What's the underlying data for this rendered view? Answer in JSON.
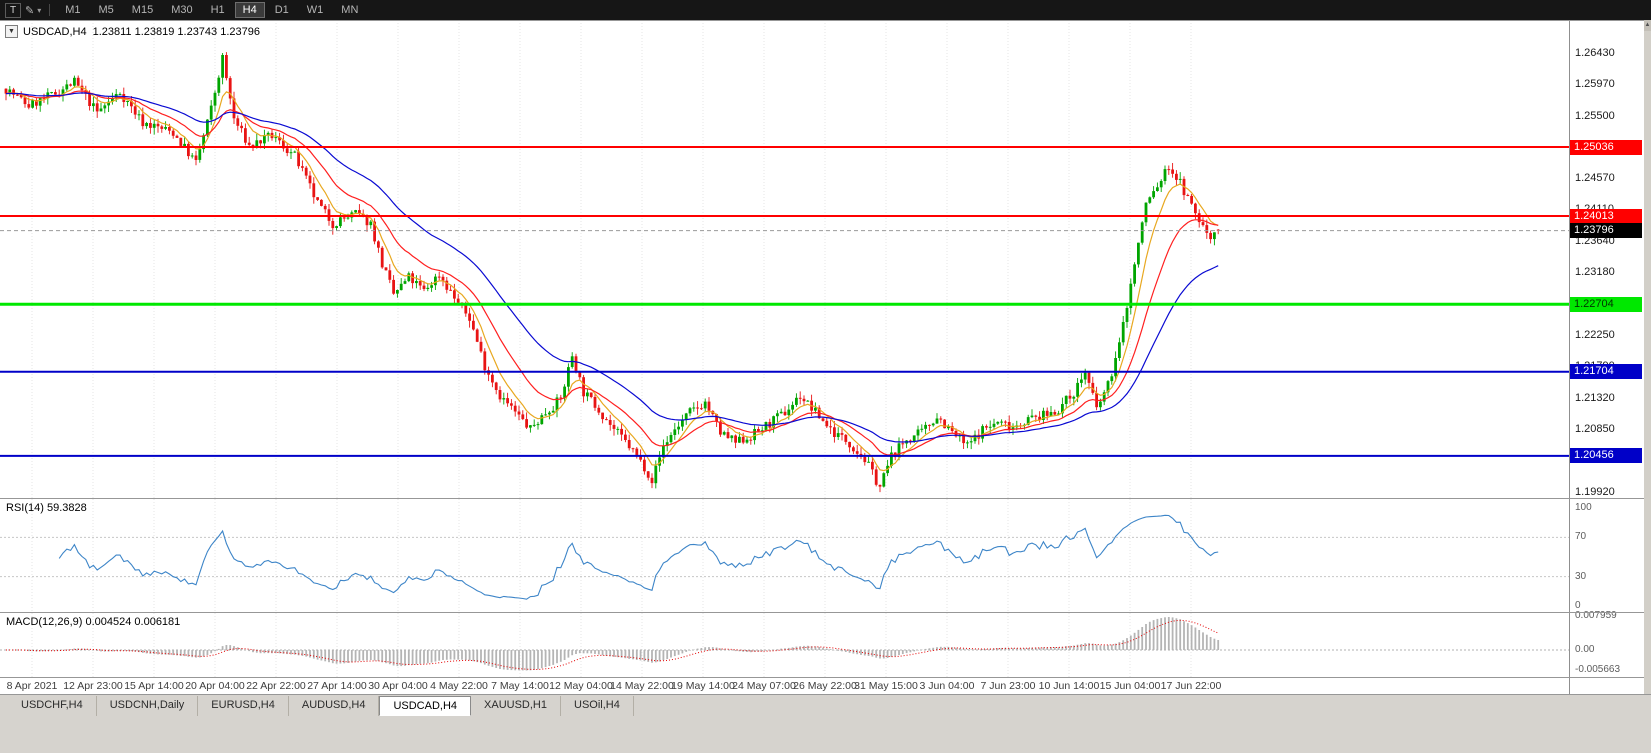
{
  "toolbar": {
    "tool_button": "T",
    "draw_icon_glyph": "✎",
    "dropdown_glyph": "▾",
    "timeframes": [
      "M1",
      "M5",
      "M15",
      "M30",
      "H1",
      "H4",
      "D1",
      "W1",
      "MN"
    ],
    "active_timeframe": "H4"
  },
  "chart_header": {
    "collapse_glyph": "▼",
    "symbol": "USDCAD,H4",
    "ohlc": "1.23811 1.23819 1.23743 1.23796"
  },
  "indicators": {
    "rsi": {
      "label": "RSI(14) 59.3828",
      "period": 14,
      "line_color": "#3d85c8",
      "axis_values": [
        100,
        70,
        30,
        0
      ],
      "axis_labels": [
        "100",
        "70",
        "30",
        "0"
      ],
      "level_lines": [
        70,
        30
      ]
    },
    "macd": {
      "label": "MACD(12,26,9) 0.004524 0.006181",
      "fast": 12,
      "slow": 26,
      "signal": 9,
      "hist_color": "#b4b4b4",
      "signal_color": "#e40000",
      "axis_labels": [
        "0.007959",
        "0.00",
        "-0.005663"
      ]
    }
  },
  "chart_data": {
    "type": "candlestick",
    "symbol": "USDCAD",
    "timeframe": "H4",
    "bars": 320,
    "ylim": [
      1.19889,
      1.26889
    ],
    "last_candle": {
      "o": 1.23811,
      "h": 1.23819,
      "l": 1.23743,
      "c": 1.23796
    },
    "extremes": {
      "high": 1.2643,
      "high_bar": 57,
      "low": 1.1992,
      "low_bar": 230
    },
    "price_path": [
      [
        0,
        1.259
      ],
      [
        6,
        1.2565
      ],
      [
        12,
        1.258
      ],
      [
        18,
        1.26
      ],
      [
        24,
        1.2555
      ],
      [
        30,
        1.2585
      ],
      [
        36,
        1.254
      ],
      [
        44,
        1.2525
      ],
      [
        50,
        1.248
      ],
      [
        54,
        1.256
      ],
      [
        57,
        1.2635
      ],
      [
        60,
        1.2545
      ],
      [
        64,
        1.2505
      ],
      [
        70,
        1.252
      ],
      [
        76,
        1.249
      ],
      [
        82,
        1.242
      ],
      [
        86,
        1.239
      ],
      [
        92,
        1.2405
      ],
      [
        96,
        1.239
      ],
      [
        99,
        1.233
      ],
      [
        102,
        1.2285
      ],
      [
        106,
        1.231
      ],
      [
        110,
        1.229
      ],
      [
        114,
        1.2315
      ],
      [
        118,
        1.228
      ],
      [
        122,
        1.225
      ],
      [
        126,
        1.218
      ],
      [
        130,
        1.2135
      ],
      [
        134,
        1.211
      ],
      [
        138,
        1.2085
      ],
      [
        142,
        1.211
      ],
      [
        146,
        1.213
      ],
      [
        149,
        1.2195
      ],
      [
        152,
        1.214
      ],
      [
        156,
        1.2115
      ],
      [
        160,
        1.2085
      ],
      [
        164,
        1.206
      ],
      [
        168,
        1.203
      ],
      [
        170,
        1.201
      ],
      [
        173,
        1.206
      ],
      [
        176,
        1.2085
      ],
      [
        180,
        1.211
      ],
      [
        184,
        1.2125
      ],
      [
        188,
        1.208
      ],
      [
        192,
        1.2065
      ],
      [
        196,
        1.2075
      ],
      [
        200,
        1.209
      ],
      [
        205,
        1.211
      ],
      [
        209,
        1.2135
      ],
      [
        213,
        1.211
      ],
      [
        218,
        1.208
      ],
      [
        222,
        1.2065
      ],
      [
        226,
        1.204
      ],
      [
        230,
        1.2
      ],
      [
        233,
        1.2045
      ],
      [
        237,
        1.207
      ],
      [
        241,
        1.208
      ],
      [
        245,
        1.2105
      ],
      [
        249,
        1.208
      ],
      [
        253,
        1.206
      ],
      [
        257,
        1.2085
      ],
      [
        261,
        1.2095
      ],
      [
        265,
        1.209
      ],
      [
        269,
        1.21
      ],
      [
        273,
        1.2105
      ],
      [
        277,
        1.2115
      ],
      [
        281,
        1.214
      ],
      [
        284,
        1.217
      ],
      [
        287,
        1.2115
      ],
      [
        290,
        1.215
      ],
      [
        293,
        1.221
      ],
      [
        296,
        1.23
      ],
      [
        298,
        1.236
      ],
      [
        300,
        1.242
      ],
      [
        303,
        1.2445
      ],
      [
        306,
        1.2475
      ],
      [
        309,
        1.245
      ],
      [
        312,
        1.2415
      ],
      [
        315,
        1.2385
      ],
      [
        317,
        1.237
      ],
      [
        319,
        1.238
      ]
    ],
    "candle_colors": {
      "bull": "#00a500",
      "bear": "#e81414"
    },
    "moving_averages": [
      {
        "period": 7,
        "color": "#e8a820"
      },
      {
        "period": 18,
        "color": "#ff2020"
      },
      {
        "period": 40,
        "color": "#0a0ad2"
      }
    ],
    "levels": [
      {
        "v": 1.25036,
        "label": "1.25036",
        "color": "#ff0000",
        "text_color": "#ffffff",
        "line_width": 2
      },
      {
        "v": 1.24013,
        "label": "1.24013",
        "color": "#ff0000",
        "text_color": "#ffffff",
        "line_width": 2
      },
      {
        "v": 1.22704,
        "label": "1.22704",
        "color": "#00e800",
        "text_color": "#003300",
        "line_width": 3
      },
      {
        "v": 1.21704,
        "label": "1.21704",
        "color": "#0000c8",
        "text_color": "#ffffff",
        "line_width": 2
      },
      {
        "v": 1.20456,
        "label": "1.20456",
        "color": "#0000c8",
        "text_color": "#ffffff",
        "line_width": 2
      }
    ],
    "current_price": {
      "v": 1.23796,
      "label": "1.23796",
      "bg": "#000000",
      "text_color": "#ffffff",
      "line_color": "#9a9a9a"
    },
    "y_ticks": [
      {
        "v": 1.2643,
        "label": "1.26430"
      },
      {
        "v": 1.2597,
        "label": "1.25970"
      },
      {
        "v": 1.255,
        "label": "1.25500"
      },
      {
        "v": 1.2457,
        "label": "1.24570"
      },
      {
        "v": 1.2411,
        "label": "1.24110"
      },
      {
        "v": 1.2364,
        "label": "1.23640"
      },
      {
        "v": 1.2318,
        "label": "1.23180"
      },
      {
        "v": 1.2225,
        "label": "1.22250"
      },
      {
        "v": 1.2179,
        "label": "1.21790"
      },
      {
        "v": 1.2132,
        "label": "1.21320"
      },
      {
        "v": 1.2085,
        "label": "1.20850"
      },
      {
        "v": 1.2039,
        "label": "1.20390"
      },
      {
        "v": 1.1992,
        "label": "1.19920"
      }
    ],
    "x_labels": [
      "8 Apr 2021",
      "12 Apr 23:00",
      "15 Apr 14:00",
      "20 Apr 04:00",
      "22 Apr 22:00",
      "27 Apr 14:00",
      "30 Apr 04:00",
      "4 May 22:00",
      "7 May 14:00",
      "12 May 04:00",
      "14 May 22:00",
      "19 May 14:00",
      "24 May 07:00",
      "26 May 22:00",
      "31 May 15:00",
      "3 Jun 04:00",
      "7 Jun 23:00",
      "10 Jun 14:00",
      "15 Jun 04:00",
      "17 Jun 22:00"
    ]
  },
  "tabs": {
    "items": [
      "USDCHF,H4",
      "USDCNH,Daily",
      "EURUSD,H4",
      "AUDUSD,H4",
      "USDCAD,H4",
      "XAUUSD,H1",
      "USOil,H4"
    ],
    "active": "USDCAD,H4"
  },
  "scrollbar": {
    "up_glyph": "▲"
  }
}
